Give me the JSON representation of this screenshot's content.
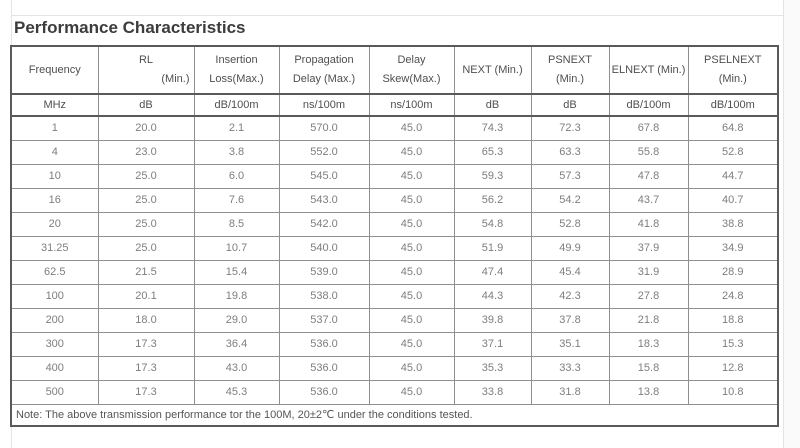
{
  "page": {
    "title": "Performance Characteristics"
  },
  "table": {
    "columns": [
      {
        "id": "frequency",
        "line1": "Frequency",
        "line2": "",
        "unit": "MHz"
      },
      {
        "id": "rl",
        "line1": "RL",
        "line2": "(Min.)",
        "unit": "dB"
      },
      {
        "id": "insertion-loss",
        "line1": "Insertion",
        "line2": "Loss(Max.)",
        "unit": "dB/100m"
      },
      {
        "id": "propagation-delay",
        "line1": "Propagation",
        "line2": "Delay (Max.)",
        "unit": "ns/100m"
      },
      {
        "id": "delay-skew",
        "line1": "Delay",
        "line2": "Skew(Max.)",
        "unit": "ns/100m"
      },
      {
        "id": "next",
        "line1": "NEXT (Min.)",
        "line2": "",
        "unit": "dB"
      },
      {
        "id": "psnext",
        "line1": "PSNEXT",
        "line2": "(Min.)",
        "unit": "dB"
      },
      {
        "id": "elnext",
        "line1": "ELNEXT (Min.)",
        "line2": "",
        "unit": "dB/100m"
      },
      {
        "id": "pselnext",
        "line1": "PSELNEXT",
        "line2": "(Min.)",
        "unit": "dB/100m"
      }
    ],
    "rows": [
      [
        "1",
        "20.0",
        "2.1",
        "570.0",
        "45.0",
        "74.3",
        "72.3",
        "67.8",
        "64.8"
      ],
      [
        "4",
        "23.0",
        "3.8",
        "552.0",
        "45.0",
        "65.3",
        "63.3",
        "55.8",
        "52.8"
      ],
      [
        "10",
        "25.0",
        "6.0",
        "545.0",
        "45.0",
        "59.3",
        "57.3",
        "47.8",
        "44.7"
      ],
      [
        "16",
        "25.0",
        "7.6",
        "543.0",
        "45.0",
        "56.2",
        "54.2",
        "43.7",
        "40.7"
      ],
      [
        "20",
        "25.0",
        "8.5",
        "542.0",
        "45.0",
        "54.8",
        "52.8",
        "41.8",
        "38.8"
      ],
      [
        "31.25",
        "25.0",
        "10.7",
        "540.0",
        "45.0",
        "51.9",
        "49.9",
        "37.9",
        "34.9"
      ],
      [
        "62.5",
        "21.5",
        "15.4",
        "539.0",
        "45.0",
        "47.4",
        "45.4",
        "31.9",
        "28.9"
      ],
      [
        "100",
        "20.1",
        "19.8",
        "538.0",
        "45.0",
        "44.3",
        "42.3",
        "27.8",
        "24.8"
      ],
      [
        "200",
        "18.0",
        "29.0",
        "537.0",
        "45.0",
        "39.8",
        "37.8",
        "21.8",
        "18.8"
      ],
      [
        "300",
        "17.3",
        "36.4",
        "536.0",
        "45.0",
        "37.1",
        "35.1",
        "18.3",
        "15.3"
      ],
      [
        "400",
        "17.3",
        "43.0",
        "536.0",
        "45.0",
        "35.3",
        "33.3",
        "15.8",
        "12.8"
      ],
      [
        "500",
        "17.3",
        "45.3",
        "536.0",
        "45.0",
        "33.8",
        "31.8",
        "13.8",
        "10.8"
      ]
    ],
    "note": "Note: The above transmission performance tor the 100M, 20±2℃ under the conditions tested."
  },
  "colors": {
    "title_text": "#3c3c3c",
    "header_text": "#4f4f4f",
    "data_text": "#7e7e7e",
    "outer_border": "#5a5a5a",
    "inner_border": "#8f8f8f",
    "frame_line": "#e4e4e4"
  }
}
